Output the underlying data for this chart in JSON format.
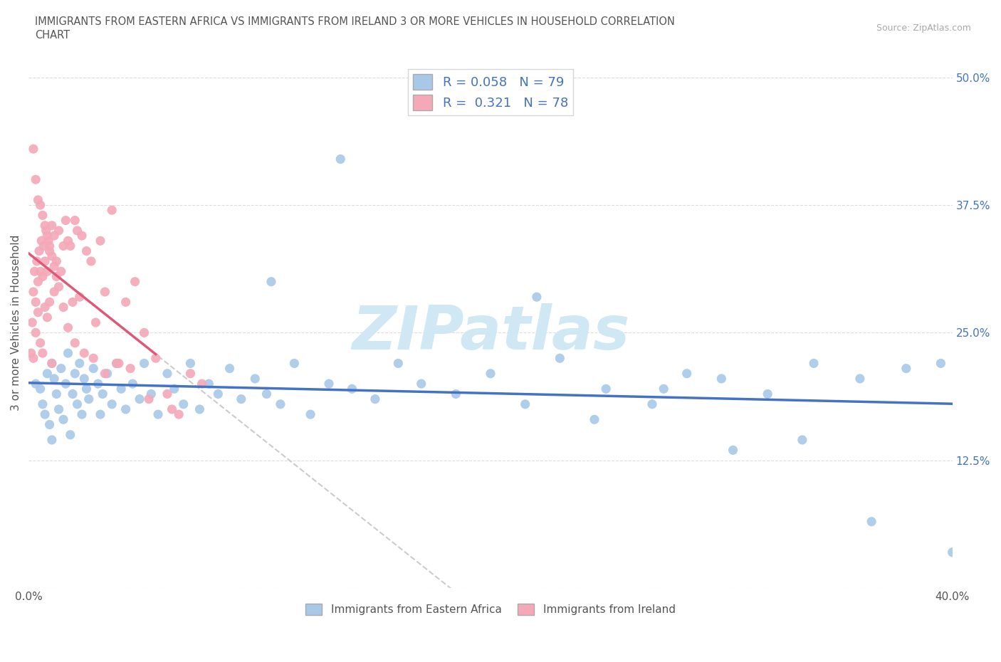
{
  "title": "IMMIGRANTS FROM EASTERN AFRICA VS IMMIGRANTS FROM IRELAND 3 OR MORE VEHICLES IN HOUSEHOLD CORRELATION\nCHART",
  "source_text": "Source: ZipAtlas.com",
  "ylabel": "3 or more Vehicles in Household",
  "xlim": [
    0.0,
    40.0
  ],
  "ylim": [
    0.0,
    52.0
  ],
  "xticks": [
    0,
    10,
    20,
    30,
    40
  ],
  "xtick_labels": [
    "0.0%",
    "",
    "",
    "",
    "40.0%"
  ],
  "yticks": [
    0,
    12.5,
    25.0,
    37.5,
    50.0
  ],
  "ytick_labels": [
    "",
    "12.5%",
    "25.0%",
    "37.5%",
    "50.0%"
  ],
  "R_eastern_africa": 0.058,
  "N_eastern_africa": 79,
  "R_ireland": 0.321,
  "N_ireland": 78,
  "color_eastern_africa": "#a8c8e8",
  "color_ireland": "#f4a8b8",
  "trendline_color_eastern_africa": "#4472c4",
  "trendline_color_ireland": "#e05878",
  "diagonal_line_color": "#cccccc",
  "watermark": "ZIPatlas",
  "watermark_color": "#d0e8f4",
  "background_color": "#ffffff",
  "grid_color": "#dddddd",
  "legend_label_eastern": "Immigrants from Eastern Africa",
  "legend_label_ireland": "Immigrants from Ireland",
  "eastern_africa_x": [
    0.3,
    0.5,
    0.6,
    0.7,
    0.8,
    0.9,
    1.0,
    1.0,
    1.1,
    1.2,
    1.3,
    1.4,
    1.5,
    1.6,
    1.7,
    1.8,
    1.9,
    2.0,
    2.1,
    2.2,
    2.3,
    2.4,
    2.5,
    2.6,
    2.8,
    3.0,
    3.1,
    3.2,
    3.4,
    3.6,
    3.8,
    4.0,
    4.2,
    4.5,
    4.8,
    5.0,
    5.3,
    5.6,
    6.0,
    6.3,
    6.7,
    7.0,
    7.4,
    7.8,
    8.2,
    8.7,
    9.2,
    9.8,
    10.3,
    10.9,
    11.5,
    12.2,
    13.0,
    14.0,
    15.0,
    16.0,
    17.0,
    18.5,
    20.0,
    21.5,
    23.0,
    25.0,
    27.0,
    28.5,
    30.0,
    32.0,
    34.0,
    36.0,
    38.0,
    39.5,
    40.0,
    22.0,
    24.5,
    27.5,
    30.5,
    33.5,
    36.5,
    10.5,
    13.5
  ],
  "eastern_africa_y": [
    20.0,
    19.5,
    18.0,
    17.0,
    21.0,
    16.0,
    22.0,
    14.5,
    20.5,
    19.0,
    17.5,
    21.5,
    16.5,
    20.0,
    23.0,
    15.0,
    19.0,
    21.0,
    18.0,
    22.0,
    17.0,
    20.5,
    19.5,
    18.5,
    21.5,
    20.0,
    17.0,
    19.0,
    21.0,
    18.0,
    22.0,
    19.5,
    17.5,
    20.0,
    18.5,
    22.0,
    19.0,
    17.0,
    21.0,
    19.5,
    18.0,
    22.0,
    17.5,
    20.0,
    19.0,
    21.5,
    18.5,
    20.5,
    19.0,
    18.0,
    22.0,
    17.0,
    20.0,
    19.5,
    18.5,
    22.0,
    20.0,
    19.0,
    21.0,
    18.0,
    22.5,
    19.5,
    18.0,
    21.0,
    20.5,
    19.0,
    22.0,
    20.5,
    21.5,
    22.0,
    3.5,
    28.5,
    16.5,
    19.5,
    13.5,
    14.5,
    6.5,
    30.0,
    42.0
  ],
  "ireland_x": [
    0.1,
    0.15,
    0.2,
    0.2,
    0.25,
    0.3,
    0.3,
    0.35,
    0.4,
    0.4,
    0.45,
    0.5,
    0.5,
    0.55,
    0.6,
    0.6,
    0.65,
    0.7,
    0.7,
    0.75,
    0.8,
    0.8,
    0.85,
    0.9,
    0.9,
    1.0,
    1.0,
    1.1,
    1.1,
    1.2,
    1.3,
    1.4,
    1.5,
    1.6,
    1.7,
    1.8,
    1.9,
    2.0,
    2.1,
    2.2,
    2.3,
    2.5,
    2.7,
    2.9,
    3.1,
    3.3,
    3.6,
    3.9,
    4.2,
    4.6,
    5.0,
    5.5,
    6.0,
    6.5,
    7.0,
    7.5,
    0.2,
    0.3,
    0.4,
    0.5,
    0.6,
    0.7,
    0.8,
    0.9,
    1.0,
    1.1,
    1.2,
    1.3,
    1.5,
    1.7,
    2.0,
    2.4,
    2.8,
    3.3,
    3.8,
    4.4,
    5.2,
    6.2
  ],
  "ireland_y": [
    23.0,
    26.0,
    29.0,
    22.5,
    31.0,
    28.0,
    25.0,
    32.0,
    30.0,
    27.0,
    33.0,
    31.0,
    24.0,
    34.0,
    30.5,
    23.0,
    33.5,
    32.0,
    27.5,
    35.0,
    31.0,
    26.5,
    34.0,
    33.0,
    28.0,
    35.5,
    22.0,
    34.5,
    29.0,
    32.0,
    35.0,
    31.0,
    33.5,
    36.0,
    34.0,
    33.5,
    28.0,
    36.0,
    35.0,
    28.5,
    34.5,
    33.0,
    32.0,
    26.0,
    34.0,
    29.0,
    37.0,
    22.0,
    28.0,
    30.0,
    25.0,
    22.5,
    19.0,
    17.0,
    21.0,
    20.0,
    43.0,
    40.0,
    38.0,
    37.5,
    36.5,
    35.5,
    34.5,
    33.5,
    32.5,
    31.5,
    30.5,
    29.5,
    27.5,
    25.5,
    24.0,
    23.0,
    22.5,
    21.0,
    22.0,
    21.5,
    18.5,
    17.5
  ]
}
